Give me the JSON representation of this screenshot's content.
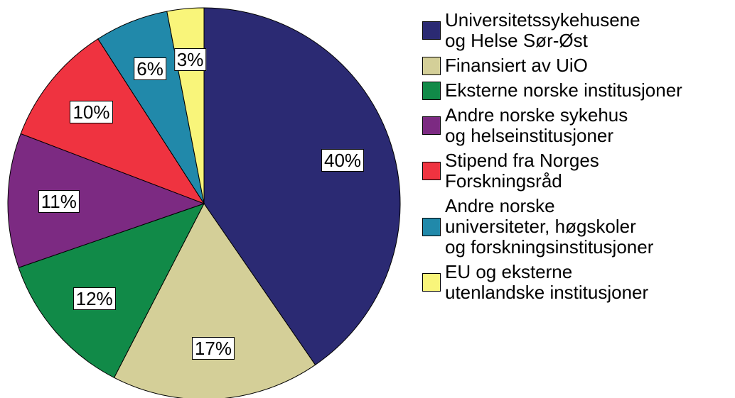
{
  "chart_data": {
    "type": "pie",
    "categories": [
      "Universitetssykehusene\nog Helse Sør-Øst",
      "Finansiert av UiO",
      "Eksterne norske institusjoner",
      "Andre norske sykehus\nog helseinstitusjoner",
      "Stipend fra Norges\nForskningsråd",
      "Andre norske\nuniversiteter, høgskoler\nog forskningsinstitusjoner",
      "EU og eksterne\nutenlandske institusjoner"
    ],
    "values": [
      40,
      17,
      12,
      11,
      10,
      6,
      3
    ],
    "value_labels": [
      "40%",
      "17%",
      "12%",
      "11%",
      "10%",
      "6%",
      "3%"
    ],
    "colors": [
      "#2b2a73",
      "#d4cf98",
      "#118a48",
      "#7c2a82",
      "#ef3340",
      "#2189aa",
      "#f9f57a"
    ]
  }
}
